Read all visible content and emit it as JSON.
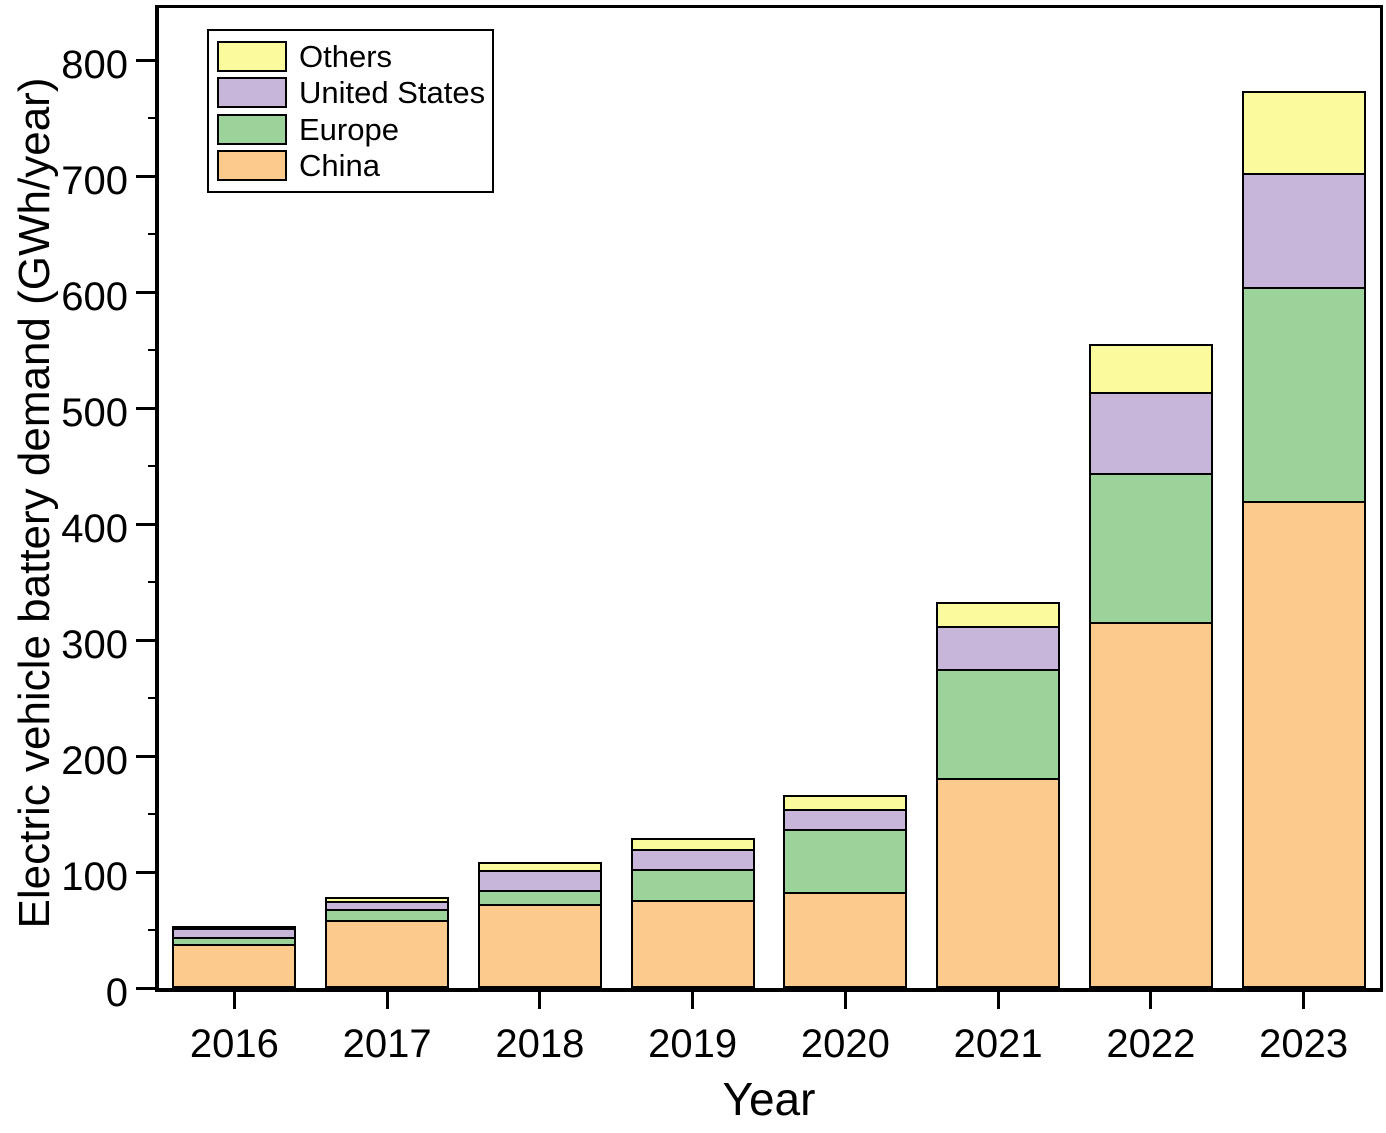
{
  "figure": {
    "xlabel": "Year",
    "ylabel": "Electric vehicle battery demand (GWh/year)"
  },
  "colors": {
    "china": "#FCCA8D",
    "europe": "#9CD39B",
    "united_states": "#C8B6DA",
    "others": "#FBFB9E",
    "axis": "#000000",
    "background": "#FFFFFF"
  },
  "chart_data": {
    "type": "bar",
    "stacked": true,
    "title": "",
    "xlabel": "Year",
    "ylabel": "Electric vehicle battery demand (GWh/year)",
    "categories": [
      "2016",
      "2017",
      "2018",
      "2019",
      "2020",
      "2021",
      "2022",
      "2023"
    ],
    "series": [
      {
        "name": "China",
        "color": "#FCCA8D",
        "values": [
          36,
          57,
          71,
          74,
          81,
          179,
          314,
          418
        ]
      },
      {
        "name": "Europe",
        "color": "#9CD39B",
        "values": [
          6,
          9,
          12,
          27,
          54,
          94,
          128,
          185
        ]
      },
      {
        "name": "United States",
        "color": "#C8B6DA",
        "values": [
          8,
          7,
          17,
          17,
          18,
          37,
          70,
          98
        ]
      },
      {
        "name": "Others",
        "color": "#FBFB9E",
        "values": [
          2,
          4,
          7,
          10,
          12,
          21,
          42,
          71
        ]
      }
    ],
    "totals": [
      52,
      77,
      107,
      128,
      165,
      331,
      554,
      772
    ],
    "ylim": [
      0,
      845
    ],
    "yticks": [
      0,
      100,
      200,
      300,
      400,
      500,
      600,
      700,
      800
    ],
    "minor_tick_step": 50,
    "legend_order": [
      "Others",
      "United States",
      "Europe",
      "China"
    ],
    "legend_position": "top-left",
    "grid": false
  }
}
